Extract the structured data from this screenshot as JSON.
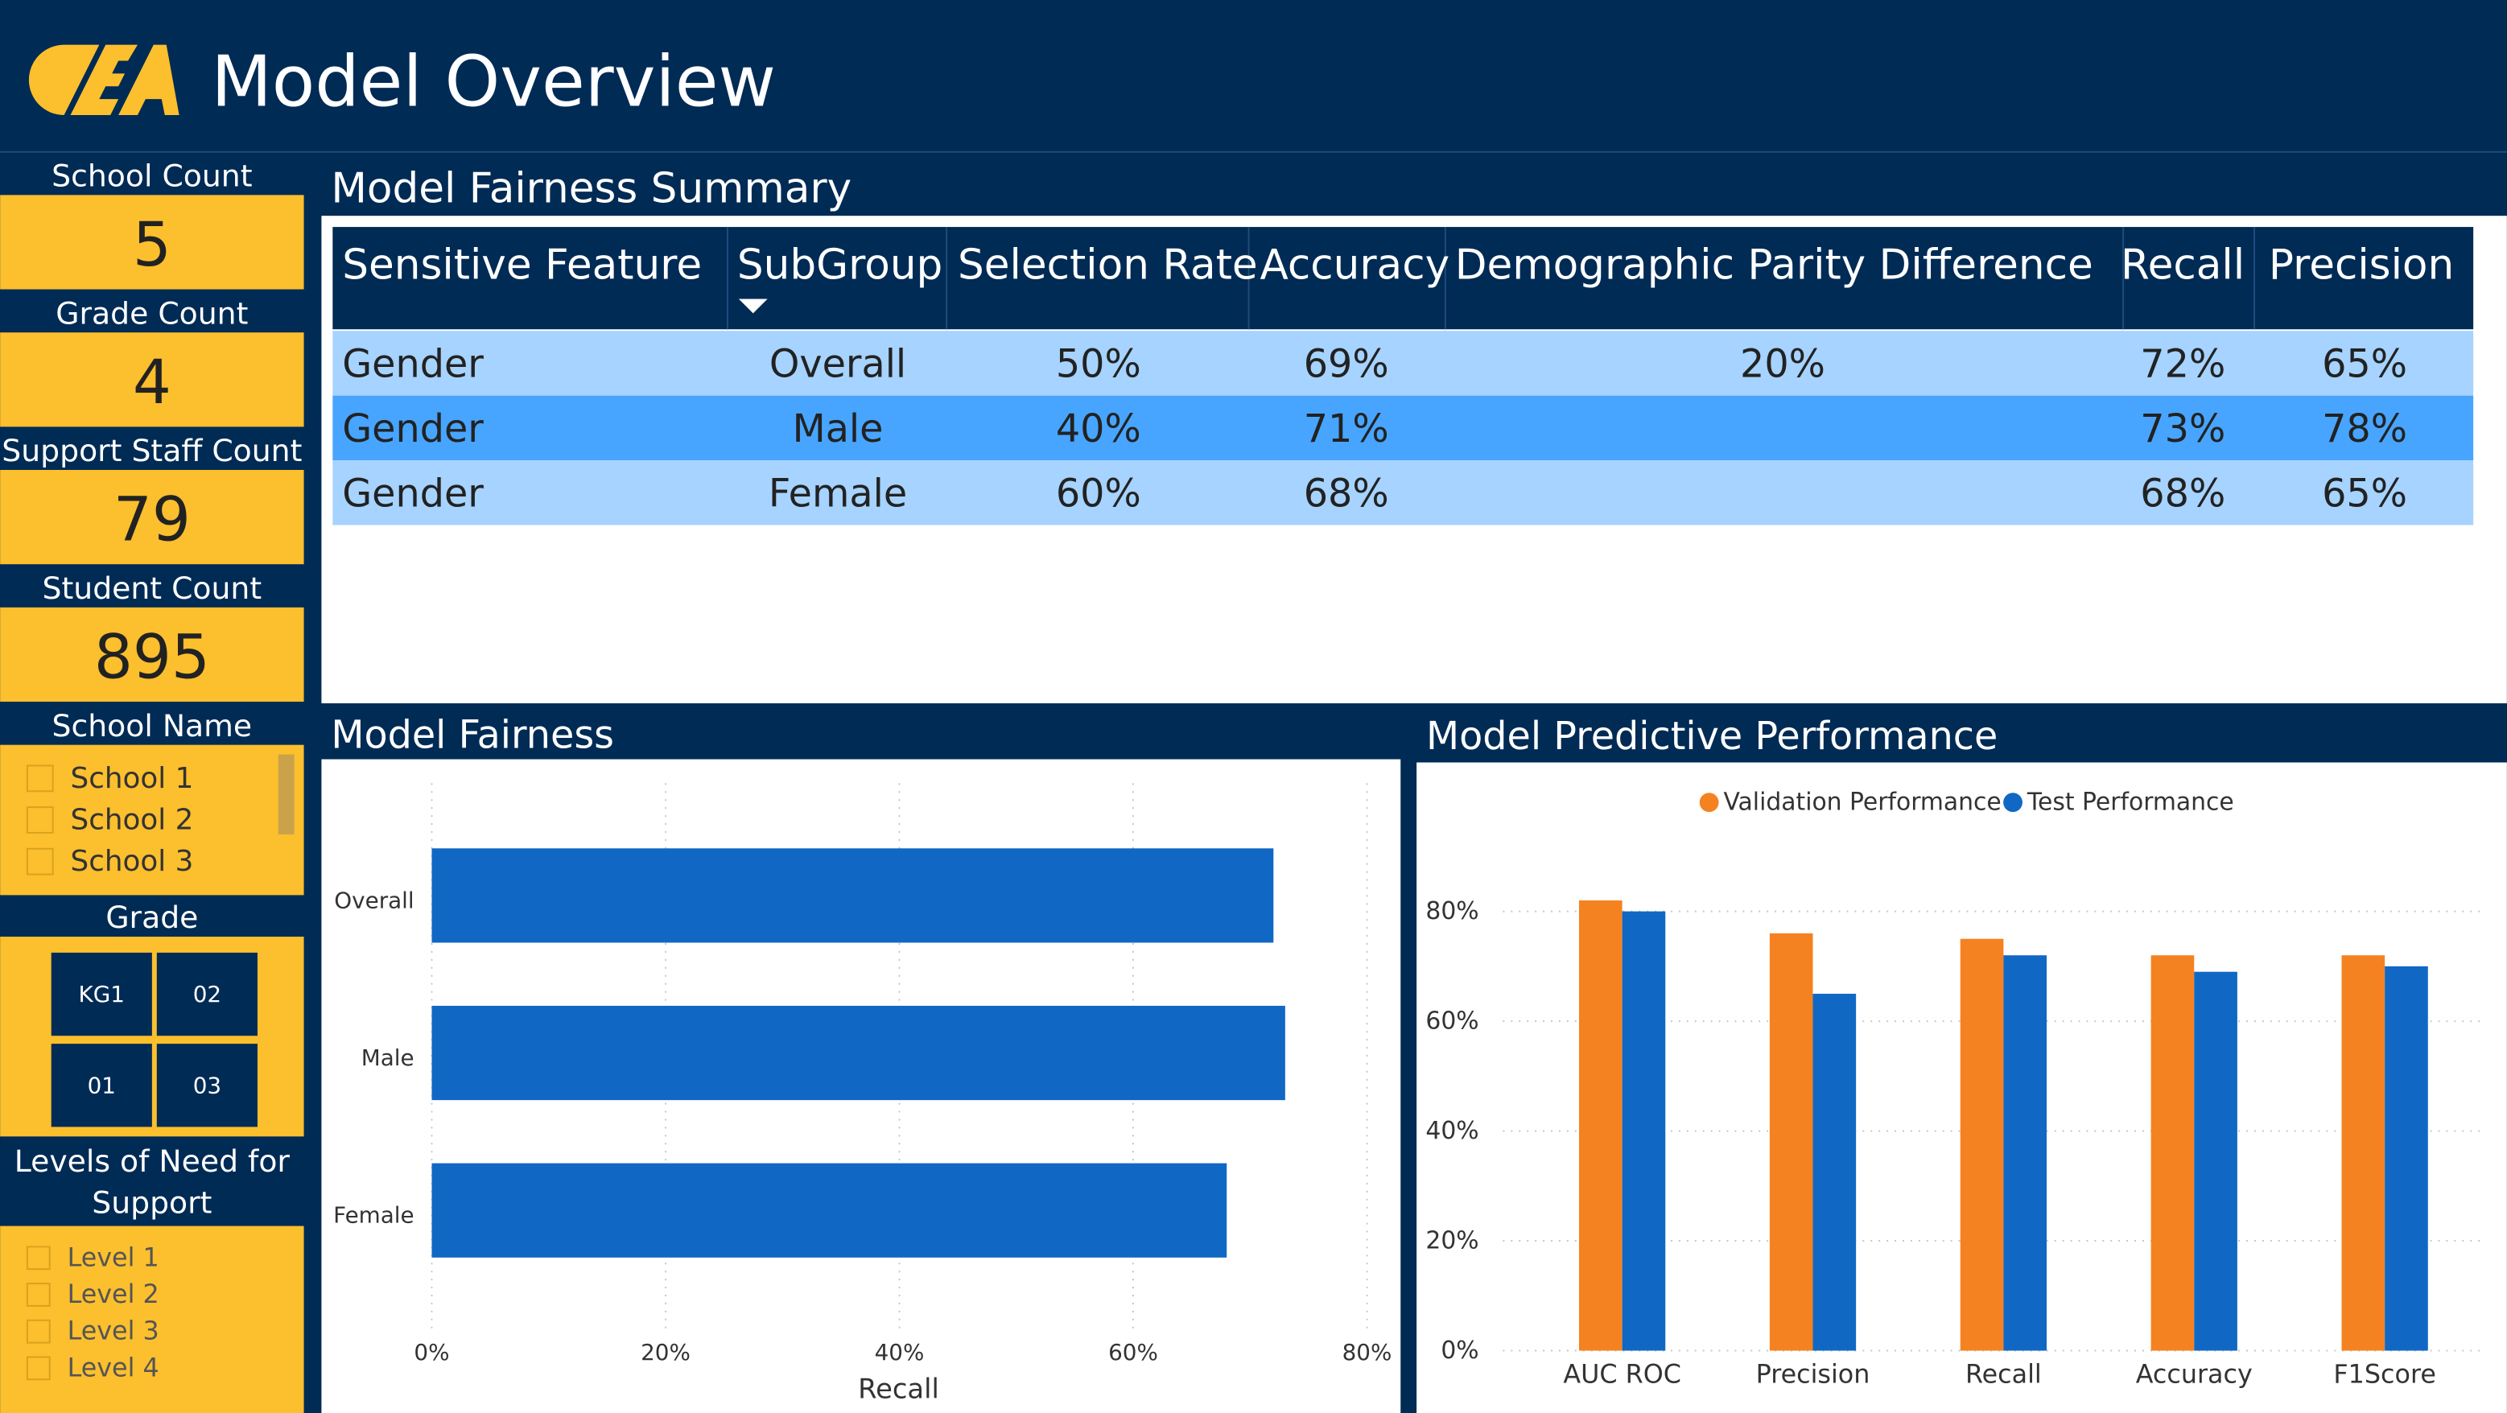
{
  "header": {
    "title": "Model Overview"
  },
  "sidebar": {
    "cards": [
      {
        "label": "School Count",
        "value": 5
      },
      {
        "label": "Grade Count",
        "value": 4
      },
      {
        "label": "Support Staff Count",
        "value": 79
      },
      {
        "label": "Student Count",
        "value": 895
      }
    ],
    "school_name": {
      "label": "School Name",
      "items": [
        "School 1",
        "School 2",
        "School 3"
      ]
    },
    "grade": {
      "label": "Grade",
      "tiles": [
        "KG1",
        "02",
        "01",
        "03"
      ]
    },
    "levels": {
      "label": "Levels of Need for Support",
      "items": [
        "Level 1",
        "Level 2",
        "Level 3",
        "Level 4"
      ]
    }
  },
  "table": {
    "title": "Model Fairness Summary",
    "headers": [
      "Sensitive Feature",
      "SubGroup",
      "Selection Rate",
      "Accuracy",
      "Demographic Parity Difference",
      "Recall",
      "Precision"
    ],
    "rows": [
      [
        "Gender",
        "Overall",
        "50%",
        "69%",
        "20%",
        "72%",
        "65%"
      ],
      [
        "Gender",
        "Male",
        "40%",
        "71%",
        null,
        "73%",
        "78%"
      ],
      [
        "Gender",
        "Female",
        "60%",
        "68%",
        null,
        "68%",
        "65%"
      ]
    ]
  },
  "chart_data": [
    {
      "type": "barh",
      "title": "Model Fairness",
      "categories": [
        "Overall",
        "Male",
        "Female"
      ],
      "values": [
        72,
        73,
        68
      ],
      "color": "#1168c4",
      "xlabel": "Recall",
      "xlim": [
        0,
        80
      ],
      "xticks": [
        {
          "value": 0,
          "label": "0%"
        },
        {
          "value": 20,
          "label": "20%"
        },
        {
          "value": 40,
          "label": "40%"
        },
        {
          "value": 60,
          "label": "60%"
        },
        {
          "value": 80,
          "label": "80%"
        }
      ],
      "grid": true
    },
    {
      "type": "bar",
      "title": "Model Predictive Performance",
      "categories": [
        "AUC ROC",
        "Precision",
        "Recall",
        "Accuracy",
        "F1Score"
      ],
      "series": [
        {
          "name": "Validation Performance",
          "color": "#f58220",
          "values": [
            82,
            76,
            75,
            72,
            72
          ]
        },
        {
          "name": "Test Performance",
          "color": "#1168c4",
          "values": [
            80,
            65,
            72,
            69,
            70
          ]
        }
      ],
      "ylim": [
        0,
        85
      ],
      "yticks": [
        {
          "value": 0,
          "label": "0%"
        },
        {
          "value": 20,
          "label": "20%"
        },
        {
          "value": 40,
          "label": "40%"
        },
        {
          "value": 60,
          "label": "60%"
        },
        {
          "value": 80,
          "label": "80%"
        }
      ],
      "grid": true,
      "legend": "top"
    }
  ]
}
